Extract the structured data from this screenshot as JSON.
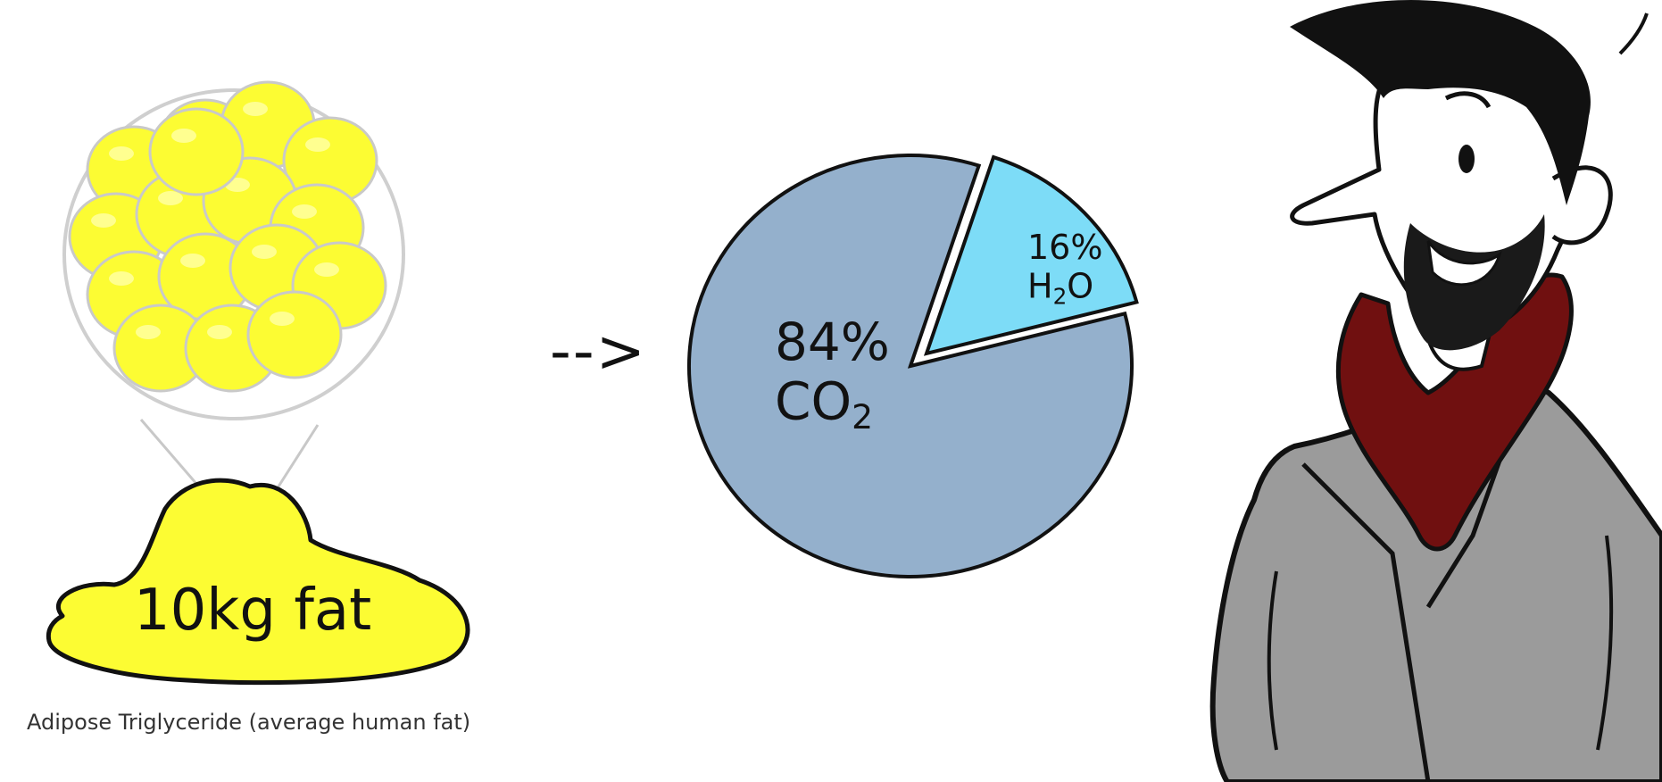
{
  "fat_blob": {
    "label": "10kg fat"
  },
  "caption": "Adipose Triglyceride (average human fat)",
  "arrow": "-->",
  "chart_data": {
    "type": "pie",
    "slices": [
      {
        "name": "CO2",
        "label_value": "84%",
        "label_main": "CO",
        "label_sub": "2",
        "value": 84,
        "color": "#94b0cc"
      },
      {
        "name": "H2O",
        "label_value": "16%",
        "label_main": "H",
        "label_sub": "2",
        "label_tail": "O",
        "value": 16,
        "color": "#7ddcf7"
      }
    ]
  },
  "colors": {
    "fat_yellow": "#fcfc33",
    "coat_gray": "#9b9b9b",
    "scarf_red": "#701010",
    "outline": "#111111"
  },
  "character": {
    "icon": "cartoon-man-icon"
  }
}
